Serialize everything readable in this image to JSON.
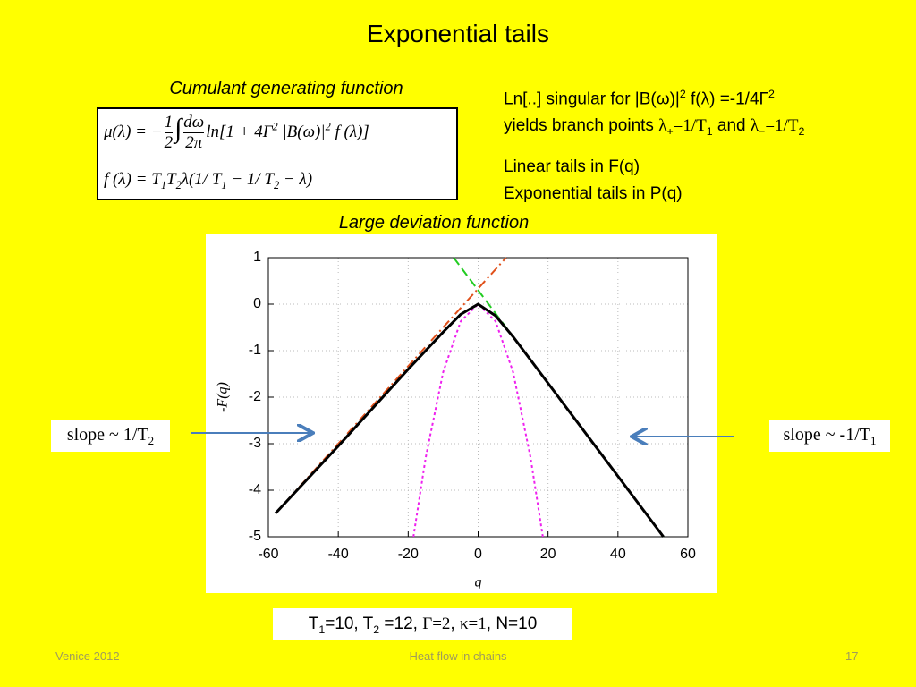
{
  "title": "Exponential tails",
  "left": {
    "heading": "Cumulant generating function",
    "formula": {
      "line1": [
        "μ(λ) = −",
        "1",
        "2",
        "∫",
        "dω",
        "2π",
        "ln[1 + 4Γ",
        "2",
        "|B(ω)|",
        "2",
        "f (λ)]"
      ],
      "line2": [
        "f (λ) = T",
        "1",
        "T",
        "2",
        "λ(1/ T",
        "1",
        "− 1/ T",
        "2",
        "− λ)"
      ]
    }
  },
  "right": {
    "line1": [
      "Ln[..] singular for |B(ω)|",
      "2",
      " f(λ) =-1/4Γ",
      "2"
    ],
    "line2": [
      "yields branch points ",
      "λ",
      "+",
      "=1/T",
      "1",
      " and ",
      "λ",
      "−",
      "=1/T",
      "2"
    ],
    "line3": "Linear tails in F(q)",
    "line4": "Exponential tails in P(q)"
  },
  "chart_heading": "Large deviation function",
  "slope_left": [
    "slope ~ 1/T",
    "2"
  ],
  "slope_right": [
    "slope ~ -1/T",
    "1"
  ],
  "params": [
    "T",
    "1",
    "=10, T",
    "2",
    " =12, ",
    "Γ=2",
    ", ",
    "κ=1",
    ", N=10"
  ],
  "footer": {
    "left": "Venice 2012",
    "center": "Heat flow in chains",
    "right": "17"
  },
  "chart_data": {
    "type": "line",
    "xlabel": "q",
    "ylabel": "-F(q)",
    "xlim": [
      -60,
      60
    ],
    "ylim": [
      -5,
      1
    ],
    "xticks": [
      -60,
      -40,
      -20,
      0,
      20,
      40,
      60
    ],
    "yticks": [
      -5,
      -4,
      -3,
      -2,
      -1,
      0,
      1
    ],
    "grid": true,
    "series": [
      {
        "color": "#e0501a",
        "style": "dashdot",
        "x": [
          -58,
          8
        ],
        "values": [
          -4.5,
          1
        ]
      },
      {
        "color": "#22cc22",
        "style": "dashed",
        "x": [
          -7,
          53
        ],
        "values": [
          1,
          -5
        ]
      },
      {
        "color": "#ee22ee",
        "style": "dotted",
        "x": [
          -18.5,
          -15,
          -10,
          -5,
          0,
          5,
          10,
          15,
          18.5
        ],
        "values": [
          -5,
          -3.3,
          -1.46,
          -0.37,
          0,
          -0.37,
          -1.46,
          -3.3,
          -5
        ]
      },
      {
        "color": "#000000",
        "style": "solid",
        "x": [
          -58,
          -40,
          -20,
          -10,
          -5,
          0,
          5,
          10,
          20,
          40,
          53
        ],
        "values": [
          -4.5,
          -3.05,
          -1.4,
          -0.6,
          -0.22,
          0,
          -0.25,
          -0.7,
          -1.7,
          -3.7,
          -5
        ]
      }
    ]
  }
}
